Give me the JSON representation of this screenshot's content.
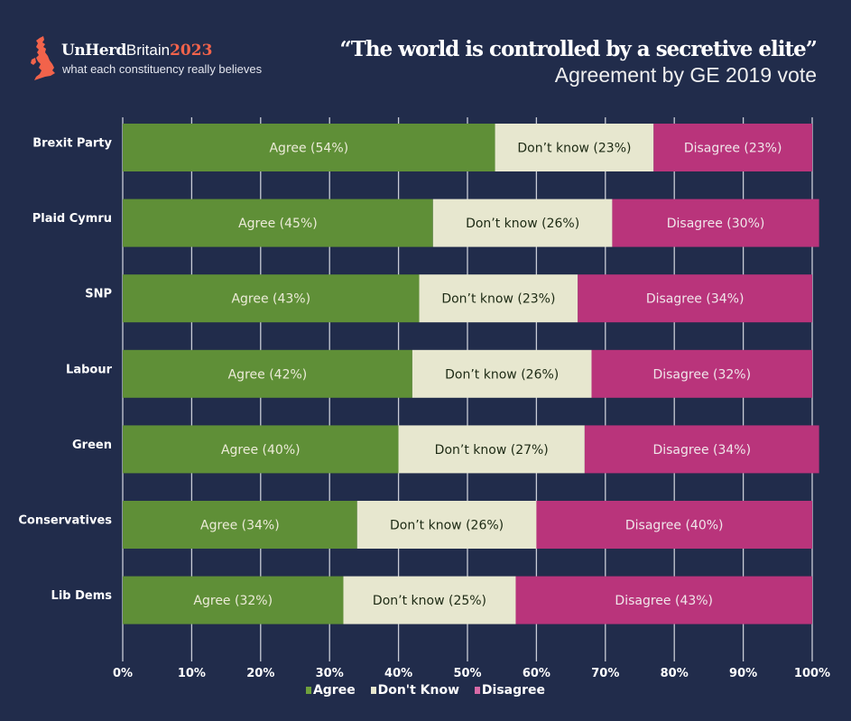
{
  "header": {
    "brand_un": "UnHerd",
    "brand_britain": "Britain",
    "brand_year": "2023",
    "tagline": "what each constituency really believes",
    "logo_icon": "uk-map-icon",
    "title": "“The world is controlled by a secretive elite”",
    "subtitle": "Agreement by GE 2019 vote"
  },
  "colors": {
    "background": "#212c4b",
    "agree": "#5f8f37",
    "dont_know": "#e7e7cf",
    "disagree": "#b9347b",
    "brand_accent": "#f2634b"
  },
  "chart_data": {
    "type": "bar",
    "orientation": "horizontal",
    "stacked": true,
    "title": "“The world is controlled by a secretive elite”",
    "subtitle": "Agreement by GE 2019 vote",
    "xlabel": "",
    "ylabel": "",
    "xlim": [
      0,
      100
    ],
    "x_ticks": [
      "0%",
      "10%",
      "20%",
      "30%",
      "40%",
      "50%",
      "60%",
      "70%",
      "80%",
      "90%",
      "100%"
    ],
    "grid": true,
    "legend_position": "bottom-center",
    "categories": [
      "Brexit Party",
      "Plaid Cymru",
      "SNP",
      "Labour",
      "Green",
      "Conservatives",
      "Lib Dems"
    ],
    "series": [
      {
        "name": "Agree",
        "label_prefix": "Agree",
        "values": [
          54,
          45,
          43,
          42,
          40,
          34,
          32
        ]
      },
      {
        "name": "Don't Know",
        "label_prefix": "Don’t know",
        "values": [
          23,
          26,
          23,
          26,
          27,
          26,
          25
        ]
      },
      {
        "name": "Disagree",
        "label_prefix": "Disagree",
        "values": [
          23,
          30,
          34,
          32,
          34,
          40,
          43
        ]
      }
    ]
  },
  "legend": {
    "items": [
      {
        "label": "Agree"
      },
      {
        "label": "Don't Know"
      },
      {
        "label": "Disagree"
      }
    ]
  }
}
